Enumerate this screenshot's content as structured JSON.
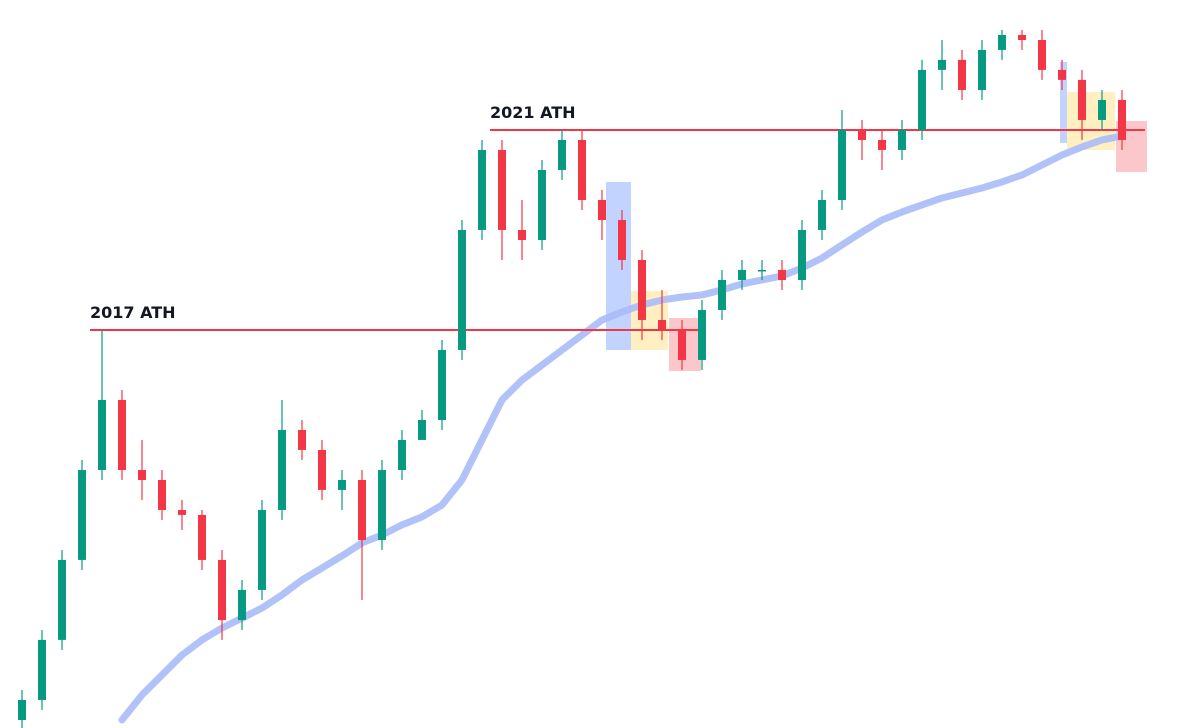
{
  "chart_data": {
    "type": "candlestick",
    "log_scale": true,
    "ylim": [
      1630,
      155700
    ],
    "up_color": "#089981",
    "down_color": "#f23645",
    "categories": [
      null,
      null,
      null,
      null,
      null,
      null,
      null,
      null,
      null,
      null,
      null,
      null,
      null,
      null,
      null,
      null,
      null,
      null,
      null,
      null,
      null,
      null,
      null,
      null,
      null,
      null,
      null,
      null,
      null,
      null,
      null,
      null,
      null,
      null,
      null,
      null,
      null,
      null,
      null,
      null,
      null,
      null,
      null,
      null,
      null,
      null,
      null,
      null,
      null,
      null,
      null,
      null,
      null,
      null,
      null,
      null
    ],
    "open": [
      1714,
      1943,
      2830,
      4670,
      8200,
      12720,
      8200,
      7705,
      6385,
      6190,
      4670,
      3205,
      3870,
      6385,
      10540,
      9300,
      7240,
      7705,
      5290,
      8200,
      9900,
      11220,
      17390,
      36880,
      60870,
      36880,
      34640,
      53700,
      64800,
      44500,
      39260,
      30560,
      20990,
      19710,
      16340,
      22340,
      26960,
      28710,
      28710,
      26960,
      36880,
      44500,
      69000,
      64800,
      60870,
      69000,
      100500,
      107000,
      88600,
      113900,
      125100,
      121200,
      100500,
      94400,
      73450,
      83250
    ],
    "high": [
      2068,
      3010,
      4970,
      8735,
      19710,
      13540,
      9900,
      8200,
      6800,
      6385,
      4970,
      4120,
      6800,
      12720,
      11220,
      9900,
      8200,
      8200,
      8735,
      10540,
      11950,
      18520,
      39260,
      64800,
      64800,
      44500,
      57180,
      69000,
      69000,
      47380,
      41800,
      32540,
      25330,
      20990,
      23790,
      28710,
      30560,
      30560,
      30560,
      39260,
      47380,
      78200,
      73450,
      69000,
      73450,
      107000,
      121200,
      113900,
      121200,
      129100,
      129100,
      129100,
      107000,
      100500,
      88600,
      88600
    ],
    "low": [
      1630,
      1825,
      2657,
      4385,
      7705,
      7705,
      6800,
      6000,
      5635,
      4385,
      2830,
      3010,
      3635,
      6000,
      8735,
      6800,
      6385,
      3635,
      4970,
      7705,
      10540,
      10540,
      16340,
      34640,
      30560,
      30560,
      32540,
      50440,
      41800,
      34640,
      28710,
      18520,
      18520,
      15350,
      15350,
      20990,
      25330,
      26960,
      25330,
      25330,
      34640,
      41800,
      57180,
      53700,
      57180,
      64800,
      88600,
      83250,
      83250,
      107000,
      113900,
      94400,
      88600,
      64800,
      69000,
      60870
    ],
    "close": [
      1943,
      2830,
      4670,
      8200,
      12720,
      8200,
      7705,
      6385,
      6190,
      4670,
      3205,
      3870,
      6385,
      10540,
      9300,
      7240,
      7705,
      5290,
      8200,
      9900,
      11220,
      17390,
      36880,
      60870,
      36880,
      34640,
      53700,
      64800,
      44500,
      39260,
      30560,
      20990,
      19710,
      16340,
      22340,
      26960,
      28710,
      28710,
      26960,
      36880,
      44500,
      69000,
      64800,
      60870,
      69000,
      100500,
      107000,
      88600,
      113900,
      125100,
      121200,
      100500,
      94400,
      73450,
      83250,
      64800
    ],
    "ma": {
      "color": "#a9bbf8",
      "values": [
        null,
        null,
        null,
        null,
        null,
        1714,
        2005,
        2272,
        2575,
        2830,
        3050,
        3245,
        3455,
        3750,
        4120,
        4440,
        4790,
        5195,
        5460,
        5815,
        6115,
        6590,
        7705,
        9900,
        12720,
        14410,
        15830,
        17390,
        19100,
        20990,
        22070,
        23060,
        23790,
        24240,
        24550,
        25330,
        26300,
        26960,
        27650,
        29070,
        30950,
        33570,
        36420,
        39260,
        41280,
        43130,
        45060,
        46490,
        47970,
        49820,
        52040,
        55410,
        58990,
        62020,
        64800,
        66450
      ]
    },
    "levels": [
      {
        "label": "2017 ATH",
        "value": 19710,
        "color": "#f23645"
      },
      {
        "label": "2021 ATH",
        "value": 69000,
        "color": "#f23645"
      }
    ]
  }
}
